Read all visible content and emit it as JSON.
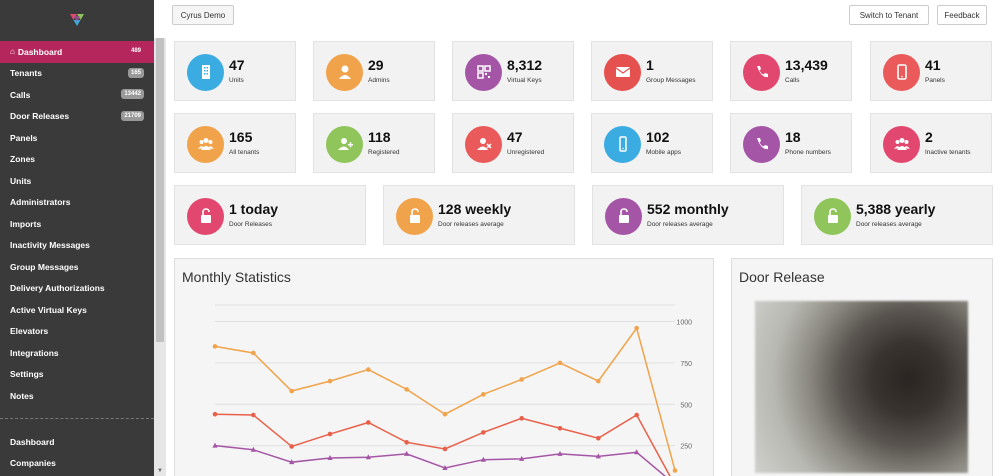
{
  "sidebar": {
    "items": [
      {
        "label": "Dashboard",
        "badge": "489",
        "active": true
      },
      {
        "label": "Tenants",
        "badge": "165"
      },
      {
        "label": "Calls",
        "badge": "13442"
      },
      {
        "label": "Door Releases",
        "badge": "21709"
      },
      {
        "label": "Panels"
      },
      {
        "label": "Zones"
      },
      {
        "label": "Units"
      },
      {
        "label": "Administrators"
      },
      {
        "label": "Imports"
      },
      {
        "label": "Inactivity Messages"
      },
      {
        "label": "Group Messages"
      },
      {
        "label": "Delivery Authorizations"
      },
      {
        "label": "Active Virtual Keys"
      },
      {
        "label": "Elevators"
      },
      {
        "label": "Integrations"
      },
      {
        "label": "Settings"
      },
      {
        "label": "Notes"
      }
    ],
    "secondary": [
      {
        "label": "Dashboard"
      },
      {
        "label": "Companies"
      }
    ]
  },
  "topbar": {
    "tenant_label": "Cyrus Demo",
    "switch_label": "Switch to Tenant",
    "feedback_label": "Feedback"
  },
  "stats_row1": [
    {
      "value": "47",
      "label": "Units",
      "color": "#3bace2",
      "icon": "building-icon"
    },
    {
      "value": "29",
      "label": "Admins",
      "color": "#f0a34a",
      "icon": "admin-icon"
    },
    {
      "value": "8,312",
      "label": "Virtual Keys",
      "color": "#a555a6",
      "icon": "qr-icon"
    },
    {
      "value": "1",
      "label": "Group Messages",
      "color": "#e5514e",
      "icon": "envelope-icon"
    },
    {
      "value": "13,439",
      "label": "Calls",
      "color": "#e2486f",
      "icon": "phone-icon"
    },
    {
      "value": "41",
      "label": "Panels",
      "color": "#ea5a5a",
      "icon": "tablet-icon"
    }
  ],
  "stats_row2": [
    {
      "value": "165",
      "label": "All tenants",
      "color": "#f0a34a",
      "icon": "users-icon"
    },
    {
      "value": "118",
      "label": "Registered",
      "color": "#8fc55a",
      "icon": "user-add-icon"
    },
    {
      "value": "47",
      "label": "Unregistered",
      "color": "#ea5a5a",
      "icon": "user-remove-icon"
    },
    {
      "value": "102",
      "label": "Mobile apps",
      "color": "#3bace2",
      "icon": "mobile-icon"
    },
    {
      "value": "18",
      "label": "Phone numbers",
      "color": "#a555a6",
      "icon": "phone-icon"
    },
    {
      "value": "2",
      "label": "Inactive tenants",
      "color": "#e2486f",
      "icon": "users-icon"
    }
  ],
  "stats_row3": [
    {
      "value": "1 today",
      "label": "Door Releases",
      "color": "#e2486f",
      "icon": "unlock-icon"
    },
    {
      "value": "128 weekly",
      "label": "Door releases average",
      "color": "#f0a34a",
      "icon": "unlock-icon"
    },
    {
      "value": "552 monthly",
      "label": "Door releases average",
      "color": "#a555a6",
      "icon": "unlock-icon"
    },
    {
      "value": "5,388 yearly",
      "label": "Door releases average",
      "color": "#8fc55a",
      "icon": "unlock-icon"
    }
  ],
  "monthly_panel": {
    "title": "Monthly Statistics"
  },
  "door_panel": {
    "title": "Door Release"
  },
  "chart_data": {
    "type": "line",
    "title": "",
    "ylim": [
      0,
      1100
    ],
    "yticks": [
      "1000",
      "750",
      "500",
      "250"
    ],
    "series": [
      {
        "color": "#f0a34a",
        "values": [
          850,
          810,
          580,
          640,
          710,
          590,
          440,
          560,
          650,
          750,
          640,
          960,
          100
        ]
      },
      {
        "color": "#e8604a",
        "values": [
          440,
          435,
          245,
          320,
          390,
          270,
          230,
          330,
          415,
          355,
          295,
          435,
          10
        ]
      },
      {
        "color": "#a555a6",
        "values": [
          250,
          225,
          150,
          175,
          180,
          200,
          115,
          165,
          170,
          200,
          185,
          210,
          15
        ]
      }
    ]
  }
}
